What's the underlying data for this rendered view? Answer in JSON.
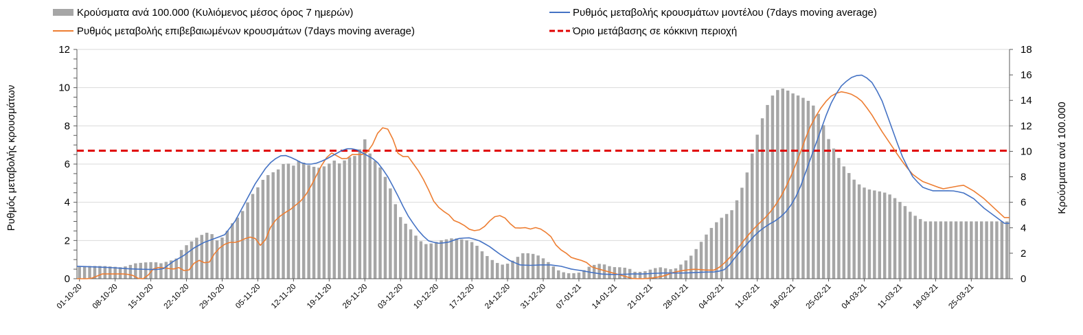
{
  "chart_data": {
    "type": "bar+line",
    "legend": {
      "bars": "Κρούσματα ανά 100.000 (Κυλιόμενος μέσος όρος 7 ημερών)",
      "model": "Ρυθμός μεταβολής κρουσμάτων μοντέλου (7days moving average)",
      "confirmed": "Ρυθμός μεταβολής επιβεβαιωμένων κρουσμάτων (7days moving average)",
      "threshold": "Όριο μετάβασης σε κόκκινη περιοχή"
    },
    "ylabel_left": "Ρυθμός μεταβολής κρουσμάτων",
    "ylabel_right": "Κρούσματα ανά 100.000",
    "ylim_left": [
      0,
      12
    ],
    "ylim_right": [
      0,
      18
    ],
    "yticks_left": [
      "0",
      "2",
      "4",
      "6",
      "8",
      "10",
      "12"
    ],
    "yticks_right": [
      "0",
      "2",
      "4",
      "6",
      "8",
      "10",
      "12",
      "14",
      "16",
      "18"
    ],
    "x_tick_labels": [
      "01-10-20",
      "08-10-20",
      "15-10-20",
      "22-10-20",
      "29-10-20",
      "05-11-20",
      "12-11-20",
      "19-11-20",
      "26-11-20",
      "03-12-20",
      "10-12-20",
      "17-12-20",
      "24-12-20",
      "31-12-20",
      "07-01-21",
      "14-01-21",
      "21-01-21",
      "28-01-21",
      "04-02-21",
      "11-02-21",
      "18-02-21",
      "25-02-21",
      "04-03-21",
      "11-03-21",
      "18-03-21",
      "25-03-21"
    ],
    "days": 183,
    "grid": true,
    "threshold_left": 6.7,
    "colors": {
      "bars": "#a6a6a6",
      "model": "#4472c4",
      "confirmed": "#ed7d31",
      "threshold": "#e00000"
    },
    "bars_keypoints": [
      [
        0,
        1.0
      ],
      [
        3,
        1.0
      ],
      [
        7,
        1.0
      ],
      [
        12,
        0.9
      ],
      [
        14,
        1.0
      ],
      [
        16,
        1.2
      ],
      [
        20,
        1.3
      ],
      [
        22,
        1.3
      ],
      [
        24,
        1.2
      ],
      [
        26,
        1.4
      ],
      [
        28,
        1.5
      ],
      [
        30,
        2.4
      ],
      [
        32,
        2.8
      ],
      [
        34,
        3.2
      ],
      [
        36,
        3.5
      ],
      [
        38,
        3.7
      ],
      [
        40,
        3.0
      ],
      [
        42,
        3.3
      ],
      [
        44,
        4.2
      ],
      [
        46,
        4.8
      ],
      [
        48,
        5.5
      ],
      [
        50,
        6.5
      ],
      [
        52,
        7.2
      ],
      [
        54,
        8.0
      ],
      [
        56,
        8.3
      ],
      [
        58,
        8.6
      ],
      [
        60,
        9.2
      ],
      [
        62,
        8.8
      ],
      [
        64,
        9.3
      ],
      [
        66,
        9.0
      ],
      [
        68,
        8.8
      ],
      [
        70,
        8.7
      ],
      [
        72,
        8.9
      ],
      [
        74,
        9.3
      ],
      [
        76,
        9.0
      ],
      [
        78,
        9.5
      ],
      [
        80,
        9.6
      ],
      [
        82,
        10.3
      ],
      [
        83,
        11.0
      ],
      [
        85,
        9.5
      ],
      [
        87,
        9.0
      ],
      [
        88,
        8.5
      ],
      [
        90,
        7.5
      ],
      [
        93,
        5.0
      ],
      [
        95,
        4.3
      ],
      [
        97,
        3.7
      ],
      [
        99,
        3.0
      ],
      [
        101,
        2.7
      ],
      [
        103,
        2.8
      ],
      [
        105,
        3.0
      ],
      [
        107,
        3.1
      ],
      [
        109,
        3.2
      ],
      [
        111,
        3.1
      ],
      [
        113,
        3.0
      ],
      [
        115,
        2.8
      ],
      [
        117,
        2.2
      ],
      [
        119,
        1.7
      ],
      [
        121,
        1.3
      ],
      [
        123,
        1.1
      ],
      [
        125,
        1.2
      ],
      [
        127,
        1.6
      ],
      [
        129,
        2.0
      ],
      [
        131,
        2.0
      ],
      [
        133,
        1.9
      ],
      [
        135,
        1.6
      ],
      [
        137,
        1.2
      ],
      [
        139,
        0.7
      ],
      [
        141,
        0.5
      ],
      [
        143,
        0.4
      ],
      [
        146,
        0.5
      ],
      [
        148,
        0.9
      ],
      [
        150,
        1.1
      ],
      [
        152,
        1.2
      ],
      [
        154,
        1.0
      ],
      [
        156,
        0.9
      ],
      [
        158,
        0.9
      ],
      [
        160,
        0.8
      ],
      [
        162,
        0.5
      ],
      [
        165,
        0.6
      ],
      [
        167,
        0.8
      ],
      [
        169,
        0.9
      ],
      [
        171,
        0.8
      ],
      [
        173,
        0.7
      ],
      [
        174,
        0.9
      ],
      [
        176,
        1.3
      ],
      [
        178,
        1.8
      ],
      [
        180,
        2.5
      ],
      [
        182,
        3.3
      ],
      [
        184,
        4.0
      ],
      [
        186,
        4.6
      ],
      [
        188,
        5.0
      ],
      [
        190,
        5.4
      ],
      [
        192,
        6.5
      ],
      [
        194,
        8.0
      ],
      [
        196,
        10.0
      ],
      [
        198,
        12.0
      ],
      [
        200,
        13.5
      ],
      [
        202,
        14.5
      ],
      [
        204,
        15.0
      ],
      [
        206,
        14.8
      ],
      [
        208,
        14.5
      ],
      [
        210,
        14.3
      ],
      [
        212,
        14.0
      ],
      [
        214,
        13.5
      ],
      [
        216,
        12.5
      ],
      [
        218,
        11.0
      ],
      [
        220,
        10.0
      ],
      [
        222,
        9.0
      ],
      [
        224,
        8.3
      ],
      [
        226,
        7.6
      ],
      [
        228,
        7.2
      ],
      [
        230,
        7.0
      ],
      [
        232,
        6.9
      ],
      [
        234,
        6.8
      ],
      [
        236,
        6.6
      ],
      [
        238,
        6.2
      ],
      [
        240,
        5.8
      ],
      [
        242,
        5.2
      ],
      [
        244,
        4.8
      ],
      [
        246,
        4.5
      ]
    ],
    "model_keypoints": [
      [
        0,
        0.65
      ],
      [
        5,
        0.62
      ],
      [
        10,
        0.58
      ],
      [
        15,
        0.52
      ],
      [
        18,
        0.5
      ],
      [
        22,
        0.48
      ],
      [
        25,
        0.5
      ],
      [
        28,
        0.9
      ],
      [
        31,
        1.2
      ],
      [
        34,
        1.6
      ],
      [
        37,
        1.9
      ],
      [
        40,
        2.1
      ],
      [
        43,
        2.3
      ],
      [
        46,
        3.0
      ],
      [
        49,
        4.0
      ],
      [
        52,
        5.0
      ],
      [
        55,
        5.8
      ],
      [
        57,
        6.2
      ],
      [
        60,
        6.5
      ],
      [
        63,
        6.3
      ],
      [
        66,
        6.0
      ],
      [
        69,
        6.0
      ],
      [
        72,
        6.2
      ],
      [
        75,
        6.5
      ],
      [
        78,
        6.8
      ],
      [
        81,
        6.8
      ],
      [
        84,
        6.5
      ],
      [
        87,
        6.2
      ],
      [
        90,
        5.5
      ],
      [
        93,
        4.5
      ],
      [
        96,
        3.4
      ],
      [
        99,
        2.6
      ],
      [
        102,
        2.0
      ],
      [
        105,
        1.85
      ],
      [
        108,
        1.9
      ],
      [
        111,
        2.1
      ],
      [
        114,
        2.15
      ],
      [
        117,
        2.0
      ],
      [
        120,
        1.7
      ],
      [
        123,
        1.3
      ],
      [
        126,
        0.95
      ],
      [
        129,
        0.72
      ],
      [
        132,
        0.7
      ],
      [
        135,
        0.72
      ],
      [
        138,
        0.72
      ],
      [
        141,
        0.65
      ],
      [
        144,
        0.5
      ],
      [
        147,
        0.42
      ],
      [
        150,
        0.32
      ],
      [
        153,
        0.24
      ],
      [
        156,
        0.22
      ],
      [
        159,
        0.23
      ],
      [
        162,
        0.25
      ],
      [
        165,
        0.25
      ],
      [
        168,
        0.28
      ],
      [
        171,
        0.3
      ],
      [
        174,
        0.3
      ],
      [
        177,
        0.3
      ],
      [
        180,
        0.32
      ],
      [
        183,
        0.35
      ],
      [
        186,
        0.35
      ],
      [
        189,
        0.5
      ],
      [
        192,
        1.2
      ],
      [
        195,
        1.8
      ],
      [
        198,
        2.4
      ],
      [
        201,
        2.8
      ],
      [
        204,
        3.1
      ],
      [
        207,
        3.6
      ],
      [
        210,
        4.5
      ],
      [
        213,
        6.0
      ],
      [
        216,
        7.5
      ],
      [
        219,
        9.0
      ],
      [
        222,
        10.0
      ],
      [
        225,
        10.5
      ],
      [
        228,
        10.7
      ],
      [
        231,
        10.4
      ],
      [
        234,
        9.5
      ],
      [
        237,
        8.0
      ],
      [
        240,
        6.5
      ],
      [
        243,
        5.4
      ],
      [
        246,
        4.8
      ],
      [
        249,
        4.6
      ],
      [
        252,
        4.6
      ],
      [
        255,
        4.6
      ],
      [
        258,
        4.5
      ],
      [
        261,
        4.2
      ],
      [
        264,
        3.7
      ],
      [
        267,
        3.3
      ],
      [
        270,
        2.9
      ]
    ],
    "confirmed_keypoints": [
      [
        0,
        0.0
      ],
      [
        3,
        0.0
      ],
      [
        5,
        0.05
      ],
      [
        7,
        0.25
      ],
      [
        11,
        0.25
      ],
      [
        14,
        0.25
      ],
      [
        16,
        0.2
      ],
      [
        18,
        0.0
      ],
      [
        20,
        0.0
      ],
      [
        22,
        0.5
      ],
      [
        24,
        0.6
      ],
      [
        26,
        0.55
      ],
      [
        28,
        0.5
      ],
      [
        30,
        0.6
      ],
      [
        32,
        0.3
      ],
      [
        34,
        0.8
      ],
      [
        36,
        1.0
      ],
      [
        38,
        0.7
      ],
      [
        40,
        1.3
      ],
      [
        42,
        1.7
      ],
      [
        44,
        1.9
      ],
      [
        46,
        1.9
      ],
      [
        48,
        2.0
      ],
      [
        50,
        2.2
      ],
      [
        52,
        2.1
      ],
      [
        54,
        1.6
      ],
      [
        56,
        2.6
      ],
      [
        58,
        3.1
      ],
      [
        60,
        3.4
      ],
      [
        62,
        3.6
      ],
      [
        64,
        3.9
      ],
      [
        66,
        4.2
      ],
      [
        68,
        4.8
      ],
      [
        70,
        5.5
      ],
      [
        72,
        6.2
      ],
      [
        74,
        6.6
      ],
      [
        76,
        6.4
      ],
      [
        78,
        6.2
      ],
      [
        80,
        6.5
      ],
      [
        82,
        6.5
      ],
      [
        84,
        6.5
      ],
      [
        86,
        7.0
      ],
      [
        88,
        7.8
      ],
      [
        90,
        8.0
      ],
      [
        92,
        7.3
      ],
      [
        94,
        6.3
      ],
      [
        96,
        6.5
      ],
      [
        98,
        6.0
      ],
      [
        100,
        5.5
      ],
      [
        102,
        4.8
      ],
      [
        104,
        4.0
      ],
      [
        106,
        3.6
      ],
      [
        108,
        3.4
      ],
      [
        110,
        3.0
      ],
      [
        112,
        2.9
      ],
      [
        114,
        2.6
      ],
      [
        116,
        2.5
      ],
      [
        118,
        2.6
      ],
      [
        120,
        3.0
      ],
      [
        122,
        3.3
      ],
      [
        124,
        3.3
      ],
      [
        126,
        2.9
      ],
      [
        128,
        2.6
      ],
      [
        130,
        2.7
      ],
      [
        132,
        2.6
      ],
      [
        134,
        2.7
      ],
      [
        136,
        2.5
      ],
      [
        138,
        2.2
      ],
      [
        140,
        1.6
      ],
      [
        142,
        1.4
      ],
      [
        144,
        1.1
      ],
      [
        146,
        1.0
      ],
      [
        148,
        0.9
      ],
      [
        150,
        0.6
      ],
      [
        152,
        0.5
      ],
      [
        154,
        0.4
      ],
      [
        156,
        0.3
      ],
      [
        158,
        0.2
      ],
      [
        160,
        0.1
      ],
      [
        162,
        0.0
      ],
      [
        165,
        0.0
      ],
      [
        168,
        0.05
      ],
      [
        171,
        0.15
      ],
      [
        174,
        0.35
      ],
      [
        177,
        0.45
      ],
      [
        180,
        0.5
      ],
      [
        183,
        0.45
      ],
      [
        186,
        0.45
      ],
      [
        189,
        0.9
      ],
      [
        192,
        1.5
      ],
      [
        195,
        2.2
      ],
      [
        198,
        2.8
      ],
      [
        201,
        3.3
      ],
      [
        204,
        4.0
      ],
      [
        207,
        5.0
      ],
      [
        210,
        6.3
      ],
      [
        213,
        7.8
      ],
      [
        216,
        8.8
      ],
      [
        219,
        9.5
      ],
      [
        222,
        9.8
      ],
      [
        225,
        9.7
      ],
      [
        228,
        9.4
      ],
      [
        231,
        8.7
      ],
      [
        234,
        7.8
      ],
      [
        237,
        7.0
      ],
      [
        240,
        6.2
      ],
      [
        243,
        5.5
      ],
      [
        246,
        5.1
      ],
      [
        249,
        4.9
      ],
      [
        252,
        4.7
      ],
      [
        255,
        4.8
      ],
      [
        258,
        4.9
      ],
      [
        261,
        4.6
      ],
      [
        264,
        4.2
      ],
      [
        267,
        3.7
      ],
      [
        270,
        3.2
      ]
    ]
  }
}
